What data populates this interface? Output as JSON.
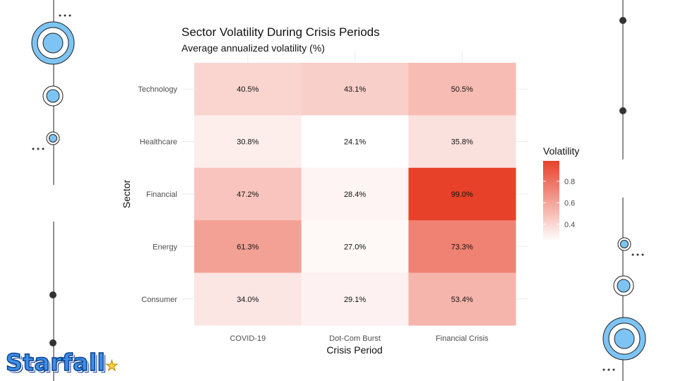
{
  "chart_data": {
    "type": "heatmap",
    "title": "Sector Volatility During Crisis Periods",
    "subtitle": "Average annualized volatility (%)",
    "xlabel": "Crisis Period",
    "ylabel": "Sector",
    "x_categories": [
      "COVID-19",
      "Dot-Com Burst",
      "Financial Crisis"
    ],
    "y_categories": [
      "Technology",
      "Healthcare",
      "Financial",
      "Energy",
      "Consumer"
    ],
    "values": [
      [
        0.405,
        0.431,
        0.505
      ],
      [
        0.308,
        0.241,
        0.358
      ],
      [
        0.472,
        0.284,
        0.99
      ],
      [
        0.613,
        0.27,
        0.733
      ],
      [
        0.34,
        0.291,
        0.534
      ]
    ],
    "cell_labels": [
      [
        "40.5%",
        "43.1%",
        "50.5%"
      ],
      [
        "30.8%",
        "24.1%",
        "35.8%"
      ],
      [
        "47.2%",
        "28.4%",
        "99.0%"
      ],
      [
        "61.3%",
        "27.0%",
        "73.3%"
      ],
      [
        "34.0%",
        "29.1%",
        "53.4%"
      ]
    ],
    "legend": {
      "title": "Volatility",
      "ticks": [
        "0.4",
        "0.6",
        "0.8"
      ],
      "tick_values": [
        0.4,
        0.6,
        0.8
      ],
      "range": [
        0.241,
        0.99
      ],
      "placement": "right"
    },
    "colors": {
      "low": "#ffffff",
      "high": "#e8412a"
    },
    "grid": true
  },
  "decor": {
    "logo_text": "Starfall"
  }
}
